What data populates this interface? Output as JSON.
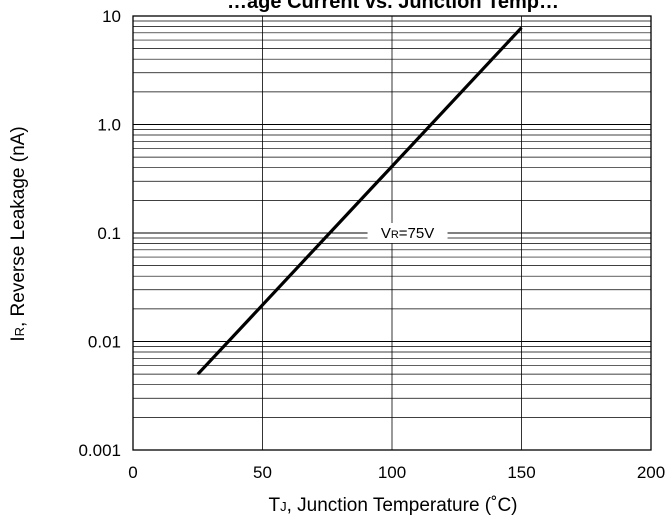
{
  "chart_data": {
    "type": "line",
    "title": "…age Current vs. Junction Temp…",
    "xlabel": {
      "main": "T",
      "sub": "J",
      "rest": ", Junction Temperature (˚C)"
    },
    "ylabel": {
      "main": "I",
      "sub": "R",
      "rest": ", Reverse Leakage (nA)"
    },
    "xlim": [
      0,
      200
    ],
    "ylim": [
      0.001,
      10
    ],
    "yscale": "log",
    "grid": true,
    "xticks": [
      0,
      50,
      100,
      150,
      200
    ],
    "xtick_labels": [
      "0",
      "50",
      "100",
      "150",
      "200"
    ],
    "yticks": [
      0.001,
      0.01,
      0.1,
      1,
      10
    ],
    "ytick_labels": [
      "0.001",
      "0.01",
      "0.1",
      "1.0",
      "10"
    ],
    "series": [
      {
        "x": [
          25,
          150
        ],
        "y": [
          0.005,
          7.8
        ]
      }
    ],
    "annotations": [
      {
        "main": "V",
        "sub": "R",
        "rest": "=75V",
        "x": 106,
        "y": 0.1
      }
    ],
    "colors": {
      "line": "#000000",
      "grid": "#000000",
      "background": "#ffffff"
    }
  }
}
